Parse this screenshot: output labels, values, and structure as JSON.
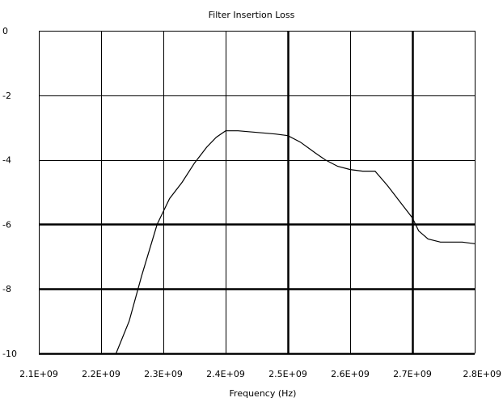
{
  "chart_data": {
    "type": "line",
    "title": "Filter Insertion Loss",
    "xlabel": "Frequency (Hz)",
    "ylabel": "",
    "xlim": [
      2100000000,
      2800000000
    ],
    "ylim": [
      -10,
      0
    ],
    "x_ticks": [
      2100000000,
      2200000000,
      2300000000,
      2400000000,
      2500000000,
      2600000000,
      2700000000,
      2800000000
    ],
    "x_tick_labels": [
      "2.1E+09",
      "2.2E+09",
      "2.3E+09",
      "2.4E+09",
      "2.5E+09",
      "2.6E+09",
      "2.7E+09",
      "2.8E+09"
    ],
    "y_ticks": [
      0,
      -2,
      -4,
      -6,
      -8,
      -10
    ],
    "y_tick_labels": [
      "0",
      "-2",
      "-4",
      "-6",
      "-8",
      "-10"
    ],
    "grid": true,
    "series": [
      {
        "color": "#000000",
        "x": [
          2224000000,
          2245000000,
          2265000000,
          2290000000,
          2300000000,
          2310000000,
          2330000000,
          2350000000,
          2370000000,
          2385000000,
          2400000000,
          2420000000,
          2450000000,
          2480000000,
          2500000000,
          2520000000,
          2545000000,
          2560000000,
          2580000000,
          2600000000,
          2620000000,
          2640000000,
          2660000000,
          2680000000,
          2700000000,
          2710000000,
          2725000000,
          2745000000,
          2780000000,
          2800000000
        ],
        "y": [
          -10,
          -9.0,
          -7.6,
          -6.0,
          -5.6,
          -5.2,
          -4.7,
          -4.1,
          -3.6,
          -3.3,
          -3.1,
          -3.1,
          -3.15,
          -3.2,
          -3.25,
          -3.45,
          -3.8,
          -4.0,
          -4.2,
          -4.3,
          -4.35,
          -4.35,
          -4.8,
          -5.3,
          -5.8,
          -6.2,
          -6.45,
          -6.55,
          -6.55,
          -6.6
        ]
      }
    ]
  }
}
